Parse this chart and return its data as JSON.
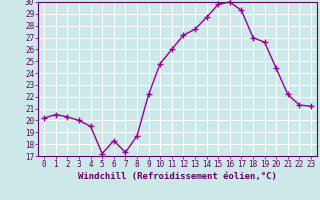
{
  "x": [
    0,
    1,
    2,
    3,
    4,
    5,
    6,
    7,
    8,
    9,
    10,
    11,
    12,
    13,
    14,
    15,
    16,
    17,
    18,
    19,
    20,
    21,
    22,
    23
  ],
  "y": [
    20.2,
    20.5,
    20.3,
    20.0,
    19.5,
    17.2,
    18.3,
    17.3,
    18.7,
    22.2,
    24.8,
    26.0,
    27.2,
    27.7,
    28.7,
    29.8,
    30.0,
    29.3,
    27.0,
    26.6,
    24.4,
    22.2,
    21.3,
    21.2
  ],
  "line_color": "#990099",
  "marker": "+",
  "marker_size": 4,
  "line_width": 1.0,
  "bg_color": "#cce8e8",
  "grid_color": "#b0d8d8",
  "xlabel": "Windchill (Refroidissement éolien,°C)",
  "xlabel_fontsize": 6.5,
  "tick_fontsize": 5.5,
  "xlim": [
    -0.5,
    23.5
  ],
  "ylim": [
    17,
    30
  ],
  "yticks": [
    17,
    18,
    19,
    20,
    21,
    22,
    23,
    24,
    25,
    26,
    27,
    28,
    29,
    30
  ],
  "xticks": [
    0,
    1,
    2,
    3,
    4,
    5,
    6,
    7,
    8,
    9,
    10,
    11,
    12,
    13,
    14,
    15,
    16,
    17,
    18,
    19,
    20,
    21,
    22,
    23
  ],
  "axis_color": "#660066",
  "spine_color": "#660066",
  "grid_line_color": "#ffffff"
}
